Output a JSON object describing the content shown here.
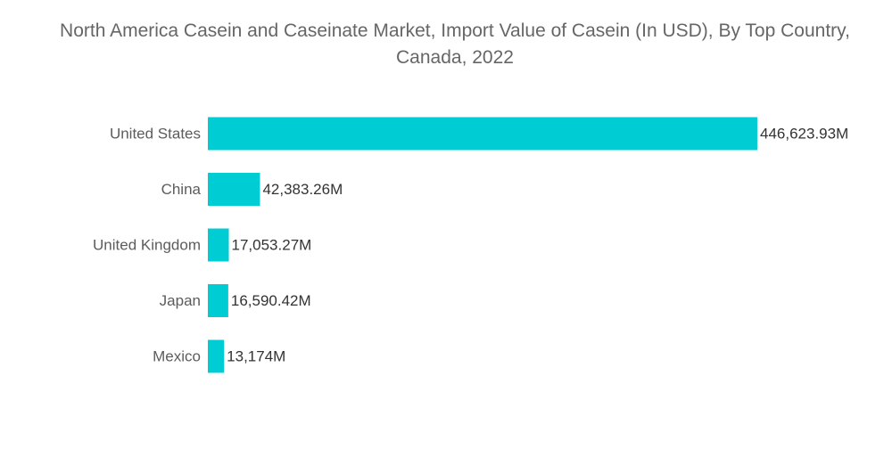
{
  "chart_data": {
    "type": "bar",
    "orientation": "horizontal",
    "title": "North America Casein and Caseinate Market, Import Value of Casein (In USD), By Top Country, Canada, 2022",
    "xlabel": "",
    "ylabel": "",
    "categories": [
      "United States",
      "China",
      "United Kingdom",
      "Japan",
      "Mexico"
    ],
    "values": [
      446623.93,
      42383.26,
      17053.27,
      16590.42,
      13174
    ],
    "value_labels": [
      "446,623.93M",
      "42,383.26M",
      "17,053.27M",
      "16,590.42M",
      "13,174M"
    ],
    "xlim": [
      0,
      446623.93
    ],
    "grid": false,
    "legend": "none",
    "bar_color": "#00ccd3"
  }
}
